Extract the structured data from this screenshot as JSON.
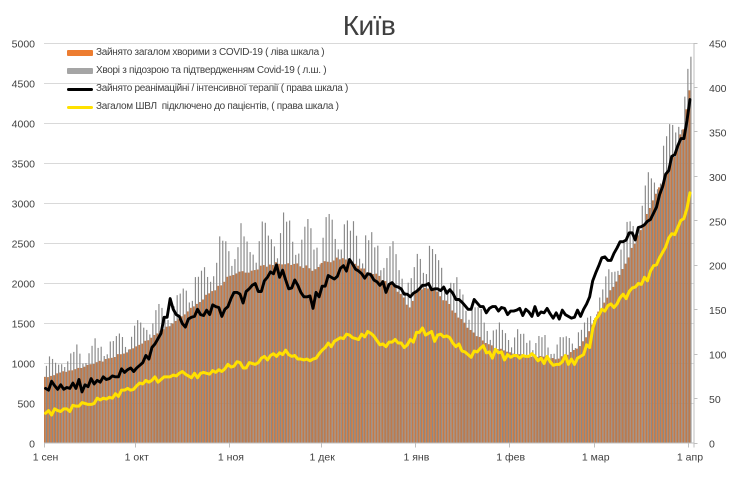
{
  "chart_data": {
    "type": "combo-bar-line",
    "title": "Київ",
    "title_color": "#3f3f3f",
    "background": "#ffffff",
    "x": {
      "tick_labels": [
        "1 сен",
        "1 окт",
        "1 ноя",
        "1 дек",
        "1 янв",
        "1 фев",
        "1 мар",
        "1 апр"
      ],
      "tick_day_index": [
        0,
        30,
        61,
        91,
        122,
        153,
        181,
        212
      ],
      "days": 213
    },
    "axes": {
      "left": {
        "min": 0,
        "max": 5000,
        "step": 500,
        "tick_labels": [
          "0",
          "500",
          "1000",
          "1500",
          "2000",
          "2500",
          "3000",
          "3500",
          "4000",
          "4500",
          "5000"
        ]
      },
      "right": {
        "min": 0,
        "max": 450,
        "step": 50,
        "tick_labels": [
          "0",
          "50",
          "100",
          "150",
          "200",
          "250",
          "300",
          "350",
          "400",
          "450"
        ]
      }
    },
    "grid": {
      "on": true,
      "color": "#d9d9d9",
      "axis_color": "#bfbfbf",
      "label_color": "#404040"
    },
    "legend_position": "top-left-inside",
    "series": [
      {
        "name": "Зайнято загалом хворими з COVID-19 ( ліва шкала )",
        "type": "bar",
        "axis": "left",
        "color": "#ED7D31",
        "values": [
          833,
          830,
          845,
          854,
          877,
          887,
          903,
          896,
          913,
          915,
          929,
          945,
          944,
          960,
          982,
          991,
          995,
          1016,
          1033,
          1024,
          1056,
          1065,
          1071,
          1081,
          1117,
          1116,
          1124,
          1139,
          1178,
          1190,
          1214,
          1233,
          1249,
          1284,
          1291,
          1322,
          1356,
          1376,
          1410,
          1428,
          1460,
          1466,
          1500,
          1532,
          1554,
          1590,
          1614,
          1651,
          1696,
          1714,
          1745,
          1768,
          1800,
          1859,
          1877,
          1905,
          1915,
          1971,
          1977,
          2021,
          2084,
          2097,
          2106,
          2126,
          2148,
          2154,
          2136,
          2136,
          2160,
          2168,
          2175,
          2223,
          2230,
          2210,
          2237,
          2231,
          2267,
          2246,
          2239,
          2241,
          2253,
          2232,
          2245,
          2251,
          2215,
          2195,
          2226,
          2191,
          2159,
          2179,
          2206,
          2257,
          2279,
          2272,
          2266,
          2287,
          2324,
          2302,
          2316,
          2300,
          2243,
          2265,
          2246,
          2222,
          2188,
          2187,
          2140,
          2137,
          2118,
          2123,
          2095,
          2042,
          2030,
          1988,
          1996,
          1967,
          1897,
          1870,
          1825,
          1735,
          1701,
          1782,
          1913,
          1926,
          1927,
          1947,
          1937,
          1960,
          1937,
          1900,
          1841,
          1791,
          1786,
          1744,
          1663,
          1634,
          1574,
          1555,
          1510,
          1447,
          1419,
          1387,
          1342,
          1332,
          1288,
          1256,
          1241,
          1227,
          1191,
          1180,
          1184,
          1164,
          1148,
          1140,
          1123,
          1119,
          1116,
          1116,
          1099,
          1093,
          1085,
          1097,
          1083,
          1094,
          1086,
          1059,
          1060,
          1068,
          1053,
          1061,
          1091,
          1097,
          1109,
          1143,
          1169,
          1186,
          1218,
          1278,
          1328,
          1404,
          1488,
          1566,
          1649,
          1684,
          1761,
          1823,
          1916,
          1958,
          2025,
          2107,
          2181,
          2248,
          2326,
          2445,
          2497,
          2602,
          2668,
          2720,
          2869,
          2944,
          3039,
          3122,
          3202,
          3234,
          3349,
          3416,
          3522,
          3582,
          3709,
          3864,
          3928,
          4178,
          4415
        ]
      },
      {
        "name": "Хворі з підозрою та підтвердженням Covid-19 ( л.ш. )",
        "type": "bar",
        "axis": "left",
        "color": "#A5A5A5",
        "values": [
          971,
          1089,
          1057,
          1009,
          986,
          991,
          956,
          1027,
          1126,
          1145,
          1238,
          1123,
          999,
          1006,
          1128,
          1221,
          1315,
          1195,
          1210,
          1094,
          1115,
          1275,
          1281,
          1343,
          1375,
          1331,
          1207,
          1175,
          1334,
          1473,
          1542,
          1512,
          1448,
          1420,
          1363,
          1501,
          1667,
          1744,
          1695,
          1595,
          1543,
          1506,
          1715,
          1854,
          1874,
          1937,
          1911,
          1763,
          1783,
          2080,
          2084,
          2160,
          2204,
          2082,
          2021,
          2091,
          2259,
          2589,
          2535,
          2528,
          2404,
          2220,
          2305,
          2454,
          2754,
          2589,
          2525,
          2393,
          2361,
          2260,
          2529,
          2775,
          2759,
          2599,
          2553,
          2464,
          2315,
          2630,
          2888,
          2773,
          2787,
          2522,
          2358,
          2374,
          2548,
          2710,
          2806,
          2691,
          2424,
          2448,
          2239,
          2572,
          2830,
          2869,
          2798,
          2557,
          2427,
          2425,
          2740,
          2788,
          2660,
          2779,
          2597,
          2310,
          2251,
          2602,
          2541,
          2642,
          2452,
          2473,
          2166,
          2195,
          2318,
          2466,
          2529,
          2367,
          2167,
          2060,
          1895,
          2010,
          2067,
          2205,
          2370,
          2307,
          2133,
          2118,
          2471,
          2431,
          2367,
          2292,
          2196,
          1942,
          1923,
          2009,
          2006,
          2079,
          1929,
          1862,
          1659,
          1547,
          1673,
          1702,
          1704,
          1682,
          1511,
          1407,
          1295,
          1413,
          1425,
          1513,
          1420,
          1379,
          1294,
          1202,
          1326,
          1429,
          1370,
          1372,
          1258,
          1288,
          1167,
          1256,
          1344,
          1329,
          1356,
          1200,
          1119,
          1122,
          1237,
          1330,
          1328,
          1340,
          1319,
          1249,
          1193,
          1390,
          1421,
          1512,
          1573,
          1592,
          1543,
          1614,
          1825,
          1926,
          2089,
          2178,
          2142,
          2148,
          2158,
          2424,
          2507,
          2770,
          2777,
          2719,
          2579,
          2684,
          2972,
          3225,
          3391,
          3314,
          3262,
          3178,
          3250,
          3722,
          3841,
          3992,
          3982,
          3888,
          3958,
          3922,
          4336,
          4683,
          4835
        ]
      },
      {
        "name": "Зайнято реанімаційні / інтенсивної терапії ( права шкала )",
        "type": "line",
        "axis": "right",
        "color": "#000000",
        "values": [
          62,
          60,
          70,
          65,
          61,
          66,
          61,
          63,
          62,
          68,
          62,
          72,
          58,
          66,
          64,
          73,
          67,
          71,
          69,
          75,
          72,
          73,
          76,
          75,
          75,
          84,
          80,
          83,
          85,
          81,
          85,
          88,
          91,
          99,
          95,
          108,
          112,
          118,
          124,
          142,
          142,
          163,
          151,
          145,
          143,
          135,
          131,
          140,
          142,
          143,
          151,
          145,
          144,
          150,
          145,
          156,
          154,
          153,
          143,
          151,
          154,
          163,
          170,
          170,
          168,
          158,
          171,
          174,
          178,
          180,
          171,
          171,
          183,
          187,
          193,
          191,
          201,
          187,
          195,
          184,
          174,
          175,
          184,
          178,
          170,
          165,
          165,
          166,
          152,
          170,
          165,
          177,
          177,
          189,
          187,
          185,
          188,
          197,
          200,
          194,
          207,
          202,
          196,
          194,
          191,
          186,
          191,
          190,
          184,
          182,
          178,
          182,
          170,
          179,
          181,
          177,
          176,
          174,
          168,
          168,
          165,
          169,
          171,
          174,
          178,
          178,
          180,
          173,
          174,
          174,
          172,
          176,
          169,
          173,
          169,
          162,
          162,
          159,
          155,
          151,
          151,
          162,
          158,
          154,
          154,
          147,
          152,
          154,
          154,
          149,
          153,
          152,
          145,
          149,
          149,
          150,
          152,
          144,
          151,
          148,
          143,
          154,
          144,
          148,
          147,
          152,
          146,
          141,
          147,
          140,
          150,
          145,
          143,
          141,
          142,
          150,
          143,
          151,
          157,
          165,
          183,
          192,
          200,
          209,
          210,
          206,
          206,
          214,
          220,
          227,
          227,
          229,
          237,
          237,
          229,
          243,
          244,
          246,
          250,
          252,
          259,
          266,
          280,
          289,
          303,
          307,
          323,
          325,
          335,
          343,
          343,
          363,
          387
        ]
      },
      {
        "name": "Загалом ШВЛ  підключено до пацієнтів, ( права шкала )",
        "type": "line",
        "axis": "right",
        "color": "#FFE100",
        "values": [
          34,
          37,
          32,
          39,
          37,
          36,
          39,
          39,
          36,
          43,
          42,
          42,
          46,
          45,
          44,
          44,
          45,
          51,
          49,
          51,
          50,
          52,
          51,
          56,
          53,
          60,
          60,
          62,
          60,
          61,
          65,
          68,
          67,
          71,
          69,
          71,
          75,
          69,
          72,
          75,
          75,
          75,
          77,
          76,
          79,
          81,
          78,
          76,
          74,
          79,
          74,
          79,
          80,
          79,
          78,
          82,
          80,
          83,
          81,
          84,
          89,
          86,
          87,
          92,
          91,
          85,
          85,
          91,
          90,
          89,
          91,
          96,
          98,
          94,
          99,
          101,
          98,
          102,
          100,
          105,
          100,
          98,
          99,
          95,
          95,
          94,
          95,
          93,
          95,
          96,
          101,
          105,
          108,
          113,
          109,
          115,
          117,
          119,
          118,
          123,
          122,
          119,
          118,
          117,
          123,
          120,
          126,
          124,
          121,
          116,
          111,
          112,
          109,
          114,
          114,
          117,
          113,
          113,
          108,
          111,
          117,
          114,
          125,
          125,
          130,
          122,
          124,
          126,
          115,
          122,
          123,
          120,
          121,
          119,
          113,
          109,
          112,
          104,
          103,
          100,
          97,
          104,
          103,
          107,
          110,
          102,
          103,
          96,
          106,
          102,
          103,
          94,
          100,
          97,
          99,
          99,
          96,
          99,
          98,
          98,
          101,
          98,
          93,
          96,
          90,
          98,
          92,
          88,
          89,
          89,
          92,
          99,
          89,
          95,
          89,
          96,
          98,
          100,
          111,
          108,
          129,
          140,
          144,
          151,
          149,
          155,
          157,
          153,
          157,
          164,
          168,
          163,
          171,
          175,
          176,
          180,
          179,
          187,
          183,
          194,
          200,
          201,
          209,
          215,
          221,
          231,
          236,
          235,
          243,
          251,
          253,
          264,
          282
        ]
      }
    ]
  }
}
